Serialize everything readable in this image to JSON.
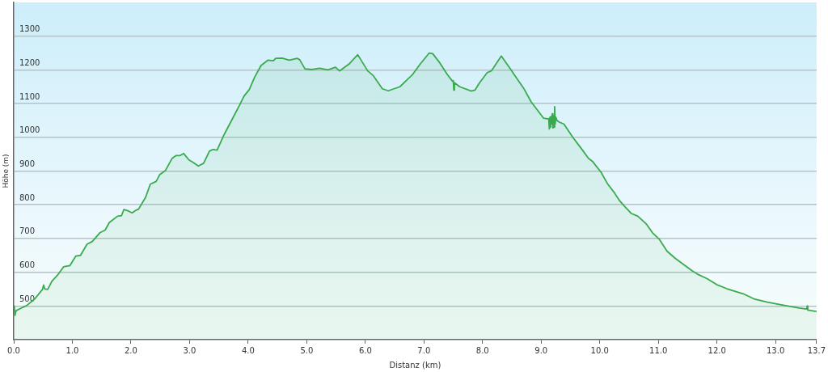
{
  "chart_data": {
    "type": "area",
    "xlabel": "Distanz (km)",
    "ylabel": "Höhe (m)",
    "x": [
      0,
      0.01,
      0.02,
      0.04,
      0.12,
      0.22,
      0.36,
      0.49,
      0.51,
      0.53,
      0.58,
      0.65,
      0.75,
      0.85,
      0.96,
      1.06,
      1.14,
      1.25,
      1.34,
      1.47,
      1.56,
      1.63,
      1.77,
      1.84,
      1.88,
      1.95,
      2.02,
      2.09,
      2.13,
      2.25,
      2.33,
      2.43,
      2.49,
      2.59,
      2.7,
      2.77,
      2.84,
      2.9,
      2.99,
      3.06,
      3.15,
      3.24,
      3.34,
      3.4,
      3.47,
      3.59,
      3.72,
      3.84,
      3.93,
      4.02,
      4.11,
      4.22,
      4.34,
      4.43,
      4.47,
      4.58,
      4.7,
      4.84,
      4.88,
      4.97,
      5.09,
      5.22,
      5.36,
      5.49,
      5.56,
      5.72,
      5.87,
      6.04,
      6.13,
      6.29,
      6.39,
      6.59,
      6.81,
      6.93,
      7.09,
      7.15,
      7.27,
      7.4,
      7.49,
      7.5,
      7.51,
      7.52,
      7.61,
      7.81,
      7.87,
      7.95,
      8.08,
      8.15,
      8.32,
      8.49,
      8.54,
      8.7,
      8.83,
      9.04,
      9.11,
      9.13,
      9.14,
      9.15,
      9.16,
      9.17,
      9.18,
      9.19,
      9.2,
      9.21,
      9.22,
      9.23,
      9.24,
      9.25,
      9.27,
      9.31,
      9.39,
      9.54,
      9.68,
      9.81,
      9.88,
      10.02,
      10.13,
      10.24,
      10.33,
      10.43,
      10.54,
      10.65,
      10.79,
      10.9,
      11.02,
      11.15,
      11.29,
      11.42,
      11.58,
      11.67,
      11.83,
      12.01,
      12.17,
      12.45,
      12.63,
      12.86,
      13.17,
      13.4,
      13.53,
      13.54,
      13.55,
      13.67,
      13.7
    ],
    "series": [
      {
        "color": "#3aaa4e",
        "values": [
          485,
          500,
          472,
          486,
          493,
          501,
          521,
          549,
          562,
          550,
          549,
          573,
          592,
          616,
          620,
          648,
          650,
          683,
          691,
          717,
          725,
          747,
          766,
          768,
          786,
          782,
          776,
          784,
          787,
          822,
          861,
          869,
          889,
          902,
          937,
          946,
          946,
          952,
          933,
          926,
          915,
          923,
          959,
          964,
          962,
          1008,
          1051,
          1091,
          1122,
          1142,
          1178,
          1213,
          1229,
          1227,
          1234,
          1235,
          1229,
          1234,
          1230,
          1203,
          1201,
          1205,
          1200,
          1208,
          1197,
          1217,
          1245,
          1197,
          1184,
          1144,
          1138,
          1150,
          1187,
          1216,
          1250,
          1248,
          1221,
          1186,
          1166,
          1168,
          1140,
          1162,
          1150,
          1137,
          1140,
          1162,
          1192,
          1197,
          1241,
          1199,
          1186,
          1146,
          1105,
          1057,
          1055,
          1055,
          1025,
          1060,
          1030,
          1062,
          1040,
          1070,
          1028,
          1065,
          1030,
          1091,
          1040,
          1060,
          1050,
          1045,
          1039,
          1000,
          968,
          937,
          928,
          897,
          863,
          838,
          814,
          794,
          774,
          766,
          744,
          717,
          697,
          662,
          641,
          624,
          604,
          594,
          581,
          562,
          551,
          536,
          521,
          511,
          501,
          494,
          491,
          500,
          488,
          484,
          484
        ]
      }
    ],
    "xlim": [
      0,
      13.7
    ],
    "xticks": [
      {
        "value": 0,
        "label": "0.0"
      },
      {
        "value": 1,
        "label": "1.0"
      },
      {
        "value": 2,
        "label": "2.0"
      },
      {
        "value": 3,
        "label": "3.0"
      },
      {
        "value": 4,
        "label": "4.0"
      },
      {
        "value": 5,
        "label": "5.0"
      },
      {
        "value": 6,
        "label": "6.0"
      },
      {
        "value": 7,
        "label": "7.0"
      },
      {
        "value": 8,
        "label": "8.0"
      },
      {
        "value": 9,
        "label": "9.0"
      },
      {
        "value": 10,
        "label": "10.0"
      },
      {
        "value": 11,
        "label": "11.0"
      },
      {
        "value": 12,
        "label": "12.0"
      },
      {
        "value": 13,
        "label": "13.0"
      },
      13.7
    ],
    "ylim": [
      400,
      1400
    ],
    "yticks": [
      500,
      600,
      700,
      800,
      900,
      1000,
      1100,
      1200,
      1300
    ],
    "grid": "y"
  }
}
